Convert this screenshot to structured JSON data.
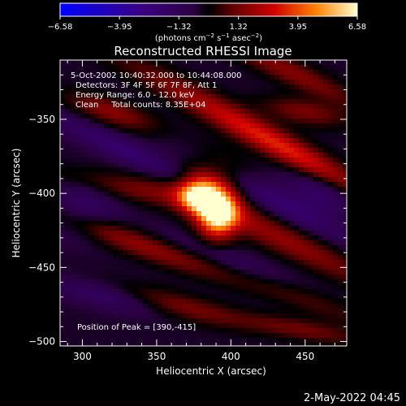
{
  "chart_data": {
    "type": "heatmap",
    "title": "Reconstructed RHESSI Image",
    "xlabel": "Heliocentric X (arcsec)",
    "ylabel": "Heliocentric Y (arcsec)",
    "xlim": [
      285,
      478
    ],
    "ylim": [
      -503,
      -310
    ],
    "x_ticks": [
      300,
      350,
      400,
      450
    ],
    "y_ticks": [
      -350,
      -400,
      -450,
      -500
    ],
    "x_tick_labels": [
      "300",
      "350",
      "400",
      "450"
    ],
    "y_tick_labels": [
      "−350",
      "−400",
      "−450",
      "−500"
    ],
    "colorbar": {
      "min": -6.58,
      "max": 6.58,
      "ticks": [
        -6.58,
        -3.95,
        -1.32,
        1.32,
        3.95,
        6.58
      ],
      "tick_labels": [
        "−6.58",
        "−3.95",
        "−1.32",
        "1.32",
        "3.95",
        "6.58"
      ],
      "unit_prefix": "(photons cm",
      "unit_exp1": "−2",
      "unit_mid": " s",
      "unit_exp2": "−1",
      "unit_mid2": " asec",
      "unit_exp3": "−2",
      "unit_suffix": ")"
    },
    "annotations": [
      "5-Oct-2002 10:40:32.000 to 10:44:08.000",
      "Detectors: 3F 4F 5F 6F 7F 8F, Att 1",
      "Energy Range: 6.0 - 12.0 keV",
      "Clean     Total counts: 8.35E+04"
    ],
    "peak_label": "Position of Peak = [390,-415]",
    "peak": [
      390,
      -415
    ],
    "components": [
      {
        "x": 391,
        "y": -414,
        "sx": 9,
        "sy": 11,
        "angle": 0,
        "amp": 6.58
      },
      {
        "x": 378,
        "y": -401,
        "sx": 9,
        "sy": 8,
        "angle": 0,
        "amp": 5.0
      },
      {
        "x": 388,
        "y": -395,
        "sx": 16,
        "sy": 14,
        "angle": -30,
        "amp": 2.2
      },
      {
        "x": 402,
        "y": -350,
        "sx": 62,
        "sy": 7,
        "angle": -28,
        "amp": 2.3
      },
      {
        "x": 320,
        "y": -345,
        "sx": 22,
        "sy": 6,
        "angle": -18,
        "amp": 2.1
      },
      {
        "x": 440,
        "y": -318,
        "sx": 38,
        "sy": 6,
        "angle": -25,
        "amp": 2.0
      },
      {
        "x": 450,
        "y": -345,
        "sx": 20,
        "sy": 6,
        "angle": -10,
        "amp": 1.8
      },
      {
        "x": 445,
        "y": -375,
        "sx": 42,
        "sy": 6,
        "angle": -28,
        "amp": 2.0
      },
      {
        "x": 340,
        "y": -398,
        "sx": 38,
        "sy": 6,
        "angle": -12,
        "amp": 1.7
      },
      {
        "x": 340,
        "y": -435,
        "sx": 46,
        "sy": 6,
        "angle": -20,
        "amp": 2.2
      },
      {
        "x": 433,
        "y": -430,
        "sx": 52,
        "sy": 7,
        "angle": -26,
        "amp": 2.2
      },
      {
        "x": 365,
        "y": -476,
        "sx": 32,
        "sy": 6,
        "angle": -14,
        "amp": 1.9
      },
      {
        "x": 440,
        "y": -466,
        "sx": 40,
        "sy": 6,
        "angle": -22,
        "amp": 1.8
      },
      {
        "x": 448,
        "y": -492,
        "sx": 30,
        "sy": 5,
        "angle": -10,
        "amp": 1.6
      },
      {
        "x": 330,
        "y": -372,
        "sx": 40,
        "sy": 6,
        "angle": -25,
        "amp": -1.8
      },
      {
        "x": 430,
        "y": -405,
        "sx": 42,
        "sy": 6,
        "angle": -28,
        "amp": -1.6
      },
      {
        "x": 320,
        "y": -470,
        "sx": 28,
        "sy": 6,
        "angle": -12,
        "amp": -1.5
      },
      {
        "x": 412,
        "y": -452,
        "sx": 40,
        "sy": 6,
        "angle": -22,
        "amp": -1.7
      },
      {
        "x": 300,
        "y": -410,
        "sx": 16,
        "sy": 14,
        "angle": 0,
        "amp": -1.3
      },
      {
        "x": 460,
        "y": -400,
        "sx": 18,
        "sy": 10,
        "angle": -20,
        "amp": -1.4
      }
    ]
  },
  "footer": {
    "date": "2-May-2022 04:45"
  }
}
